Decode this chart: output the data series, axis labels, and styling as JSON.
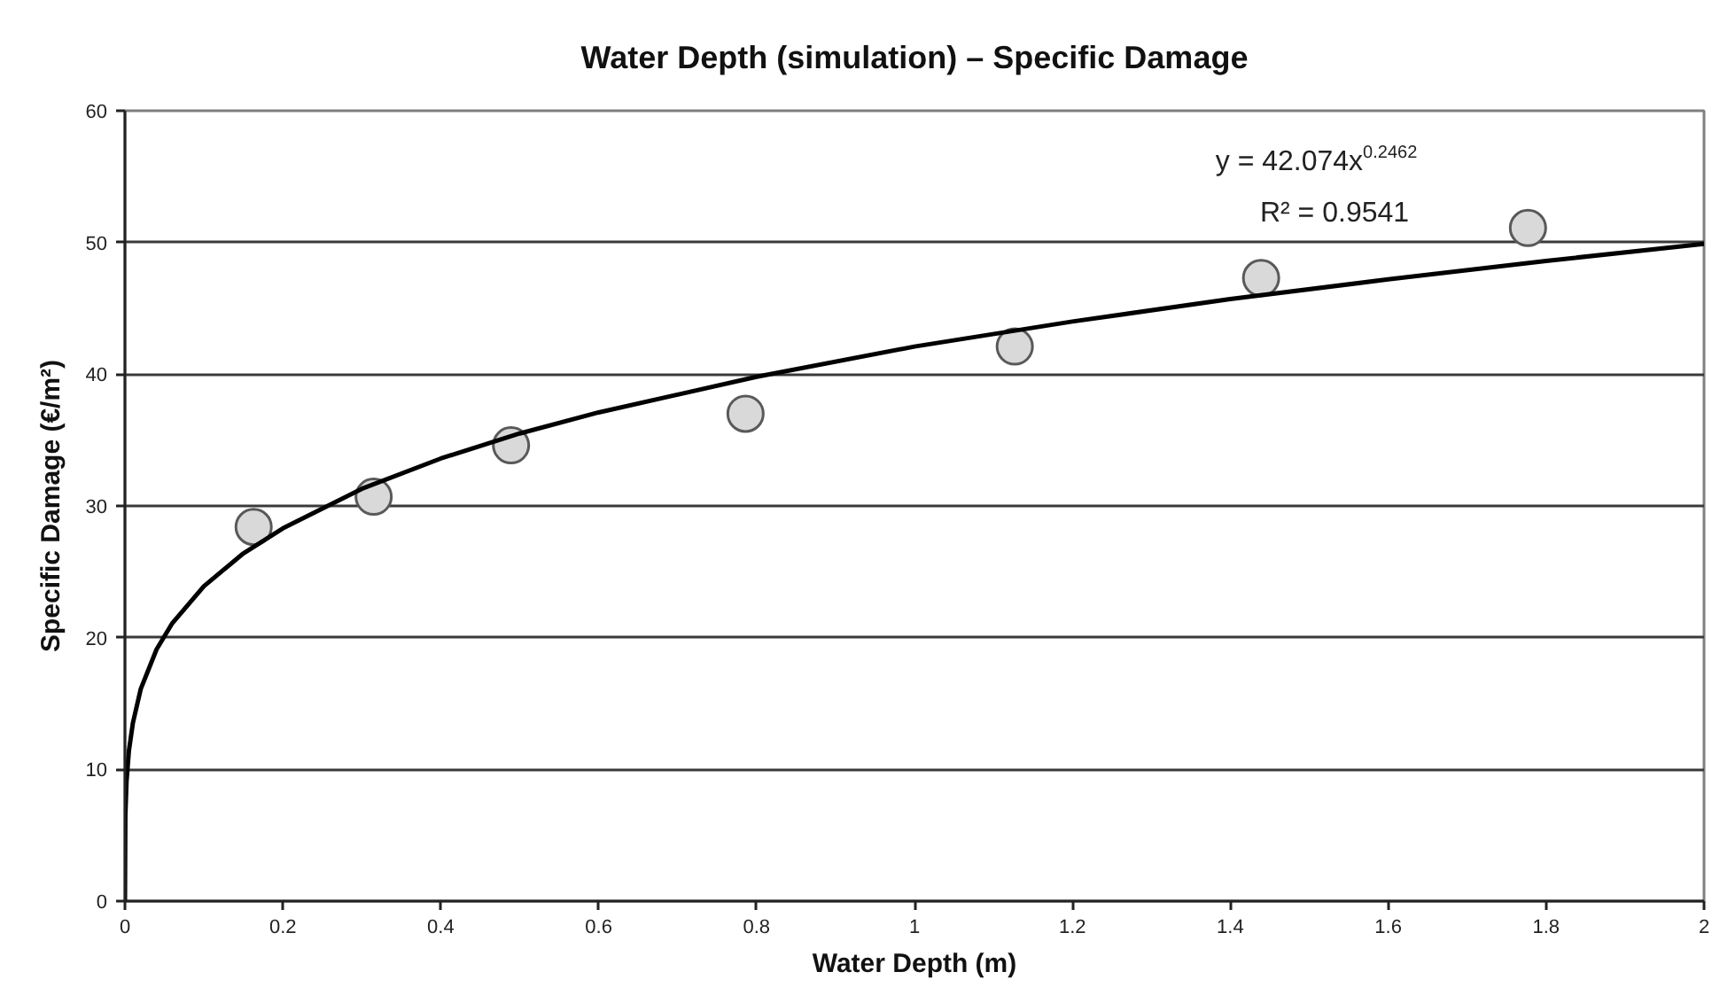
{
  "chart_data": {
    "type": "scatter",
    "title": "Water Depth (simulation) – Specific Damage",
    "xlabel": "Water Depth (m)",
    "ylabel": "Specific Damage (€/m²)",
    "annotations": [
      "y = 42.074x$^{0.2462}$",
      "R² = 0.9541"
    ],
    "xlim": [
      0,
      2
    ],
    "ylim": [
      0,
      60
    ],
    "xticks": [
      0,
      0.2,
      0.4,
      0.6,
      0.8,
      1,
      1.2,
      1.4,
      1.6,
      1.8,
      2
    ],
    "yticks": [
      0,
      10,
      20,
      30,
      40,
      50,
      60
    ],
    "grid": "y",
    "marker": "circle",
    "series": [
      {
        "color": "#d9d9d9",
        "x": [
          0.163,
          0.315,
          0.489,
          0.786,
          1.127,
          1.439,
          1.777
        ],
        "values": [
          28.4,
          30.7,
          34.6,
          37.0,
          42.1,
          47.3,
          51.1
        ]
      },
      {
        "type": "line",
        "color": "#000000",
        "marker": "none",
        "x": [
          0,
          0.0005,
          0.002,
          0.005,
          0.01,
          0.02,
          0.04,
          0.06,
          0.1,
          0.15,
          0.2,
          0.3,
          0.4,
          0.5,
          0.6,
          0.8,
          1.0,
          1.2,
          1.4,
          1.6,
          1.8,
          2.0
        ],
        "values": [
          0,
          6.5,
          9.1,
          11.4,
          13.5,
          16.1,
          19.1,
          21.1,
          23.9,
          26.4,
          28.3,
          31.3,
          33.6,
          35.5,
          37.1,
          39.8,
          42.1,
          44.0,
          45.7,
          47.2,
          48.6,
          49.9
        ]
      }
    ]
  }
}
